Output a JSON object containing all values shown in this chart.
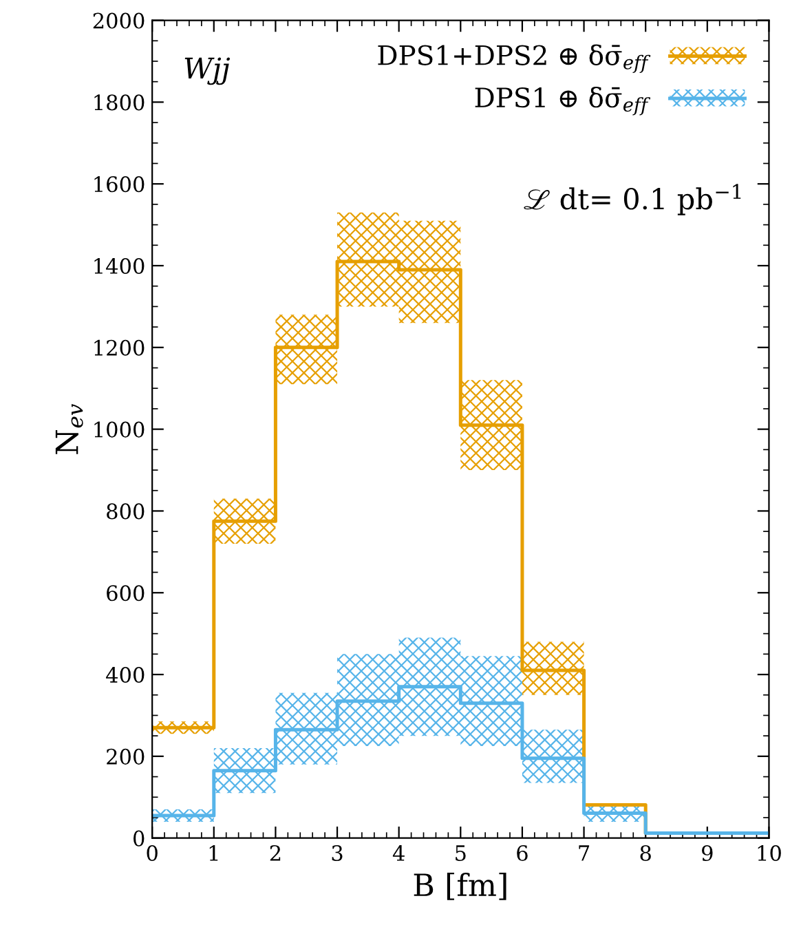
{
  "chart_data": {
    "type": "step",
    "xlabel": "B [fm]",
    "ylabel": "N$_{ev}$",
    "x": [
      0,
      1,
      2,
      3,
      4,
      5,
      6,
      7,
      8,
      9,
      10
    ],
    "series": [
      {
        "name": "DPS1+DPS2 ⊕ δσ̄$_{eff}$",
        "color": "#e69f00",
        "values": [
          270,
          775,
          1200,
          1410,
          1390,
          1010,
          410,
          81,
          12,
          12,
          12
        ],
        "lower": [
          255,
          720,
          1110,
          1300,
          1260,
          900,
          350,
          75,
          null,
          null,
          null
        ],
        "upper": [
          285,
          830,
          1280,
          1530,
          1510,
          1120,
          480,
          100,
          null,
          null,
          null
        ]
      },
      {
        "name": "DPS1 ⊕ δσ̄$_{eff}$",
        "color": "#56b4e9",
        "values": [
          55,
          165,
          265,
          335,
          370,
          330,
          195,
          61,
          12,
          12,
          12
        ],
        "lower": [
          40,
          110,
          180,
          225,
          250,
          225,
          135,
          40,
          8,
          8,
          8
        ],
        "upper": [
          70,
          220,
          355,
          450,
          490,
          445,
          265,
          80,
          16,
          16,
          16
        ]
      }
    ],
    "annotations": [
      "Wjj",
      "ℒ dt= 0.1 pb$^{−1}$"
    ],
    "xlim": [
      0,
      10
    ],
    "ylim": [
      0,
      2000
    ],
    "xticks": [
      0,
      1,
      2,
      3,
      4,
      5,
      6,
      7,
      8,
      9,
      10
    ],
    "yticks": [
      0,
      200,
      400,
      600,
      800,
      1000,
      1200,
      1400,
      1600,
      1800,
      2000
    ],
    "legend": "top right",
    "grid": false
  }
}
